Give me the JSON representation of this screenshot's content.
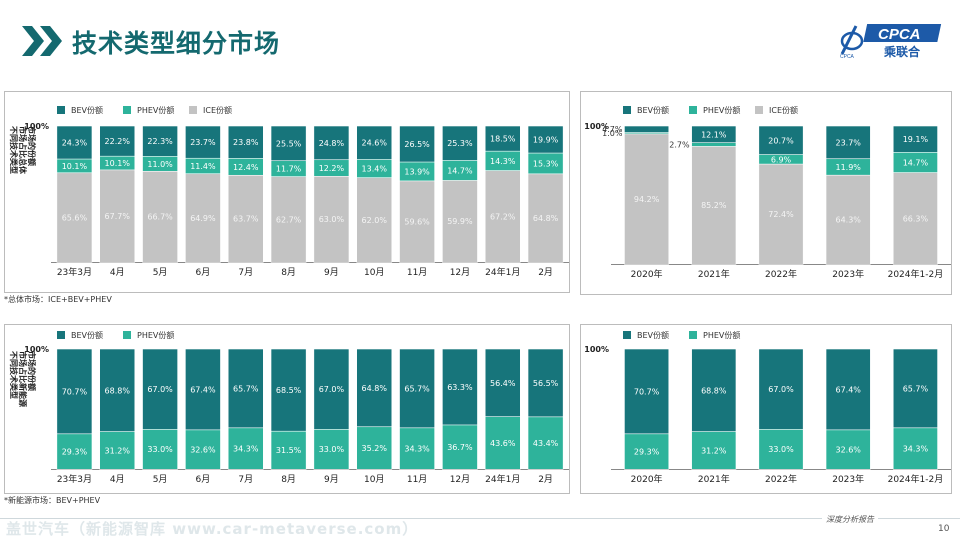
{
  "header": {
    "title": "技术类型细分市场",
    "logo_text": "CPCA",
    "logo_cn": "乘联合",
    "logo_sub": "CPCA"
  },
  "colors": {
    "bev": "#17757b",
    "phev": "#2eb39b",
    "ice": "#c3c3c3",
    "title": "#14696f"
  },
  "notes": {
    "total_market": "*总体市场：ICE+BEV+PHEV",
    "nev_market": "*新能源市场：BEV+PHEV"
  },
  "footer": {
    "slogan": "深度分析报告",
    "page": "10",
    "watermark": "盖世汽车（新能源智库 www.car-metaverse.com）"
  },
  "chart_data": [
    {
      "type": "bar",
      "stacked": true,
      "ylabel": "不同技术类型市场占比总体市场的份额",
      "top_label": "100%",
      "legend": "top-left",
      "categories": [
        "23年3月",
        "4月",
        "5月",
        "6月",
        "7月",
        "8月",
        "9月",
        "10月",
        "11月",
        "12月",
        "24年1月",
        "2月"
      ],
      "series": [
        {
          "name": "BEV份额",
          "values": [
            24.3,
            22.2,
            22.3,
            23.7,
            23.8,
            25.5,
            24.8,
            24.6,
            26.5,
            25.3,
            18.5,
            19.9
          ],
          "labels": [
            "24.3%",
            "22.2%",
            "22.3%",
            "23.7%",
            "23.8%",
            "25.5%",
            "24.8%",
            "24.6%",
            "26.5%",
            "25.3%",
            "18.5%",
            "19.9%"
          ]
        },
        {
          "name": "PHEV份额",
          "values": [
            10.1,
            10.1,
            11.0,
            11.4,
            12.4,
            11.7,
            12.2,
            13.4,
            13.9,
            14.7,
            14.3,
            15.3
          ],
          "labels": [
            "10.1%",
            "10.1%",
            "11.0%",
            "11.4%",
            "12.4%",
            "11.7%",
            "12.2%",
            "13.4%",
            "13.9%",
            "14.7%",
            "14.3%",
            "15.3%"
          ]
        },
        {
          "name": "ICE份额",
          "values": [
            65.6,
            67.7,
            66.7,
            64.9,
            63.7,
            62.7,
            63.0,
            62.0,
            59.6,
            59.9,
            67.2,
            64.8
          ],
          "labels": [
            "65.6%",
            "67.7%",
            "66.7%",
            "64.9%",
            "63.7%",
            "62.7%",
            "63.0%",
            "62.0%",
            "59.6%",
            "59.9%",
            "67.2%",
            "64.8%"
          ]
        }
      ]
    },
    {
      "type": "bar",
      "stacked": true,
      "top_label": "100%",
      "legend": "top-left",
      "categories": [
        "2020年",
        "2021年",
        "2022年",
        "2023年",
        "2024年1-2月"
      ],
      "series": [
        {
          "name": "BEV份额",
          "values": [
            4.7,
            12.1,
            20.7,
            23.7,
            19.1
          ],
          "labels": [
            "4.7%",
            "12.1%",
            "20.7%",
            "23.7%",
            "19.1%"
          ]
        },
        {
          "name": "PHEV份额",
          "values": [
            1.0,
            2.7,
            6.9,
            11.9,
            14.7
          ],
          "labels": [
            "1.0%",
            "2.7%",
            "6.9%",
            "11.9%",
            "14.7%"
          ]
        },
        {
          "name": "ICE份额",
          "values": [
            94.2,
            85.2,
            72.4,
            64.3,
            66.3
          ],
          "labels": [
            "94.2%",
            "85.2%",
            "72.4%",
            "64.3%",
            "66.3%"
          ]
        }
      ]
    },
    {
      "type": "bar",
      "stacked": true,
      "ylabel": "不同技术类型市场占比新能源市场的份额",
      "top_label": "100%",
      "legend": "top-left",
      "categories": [
        "23年3月",
        "4月",
        "5月",
        "6月",
        "7月",
        "8月",
        "9月",
        "10月",
        "11月",
        "12月",
        "24年1月",
        "2月"
      ],
      "series": [
        {
          "name": "BEV份额",
          "values": [
            70.7,
            68.8,
            67.0,
            67.4,
            65.7,
            68.5,
            67.0,
            64.8,
            65.7,
            63.3,
            56.4,
            56.5
          ],
          "labels": [
            "70.7%",
            "68.8%",
            "67.0%",
            "67.4%",
            "65.7%",
            "68.5%",
            "67.0%",
            "64.8%",
            "65.7%",
            "63.3%",
            "56.4%",
            "56.5%"
          ]
        },
        {
          "name": "PHEV份额",
          "values": [
            29.3,
            31.2,
            33.0,
            32.6,
            34.3,
            31.5,
            33.0,
            35.2,
            34.3,
            36.7,
            43.6,
            43.4
          ],
          "labels": [
            "29.3%",
            "31.2%",
            "33.0%",
            "32.6%",
            "34.3%",
            "31.5%",
            "33.0%",
            "35.2%",
            "34.3%",
            "36.7%",
            "43.6%",
            "43.4%"
          ]
        }
      ]
    },
    {
      "type": "bar",
      "stacked": true,
      "top_label": "100%",
      "legend": "top-left",
      "categories": [
        "2020年",
        "2021年",
        "2022年",
        "2023年",
        "2024年1-2月"
      ],
      "series": [
        {
          "name": "BEV份额",
          "values": [
            70.7,
            68.8,
            67.0,
            67.4,
            65.7
          ],
          "labels": [
            "70.7%",
            "68.8%",
            "67.0%",
            "67.4%",
            "65.7%"
          ]
        },
        {
          "name": "PHEV份额",
          "values": [
            29.3,
            31.2,
            33.0,
            32.6,
            34.3
          ],
          "labels": [
            "29.3%",
            "31.2%",
            "33.0%",
            "32.6%",
            "34.3%"
          ]
        }
      ]
    }
  ]
}
